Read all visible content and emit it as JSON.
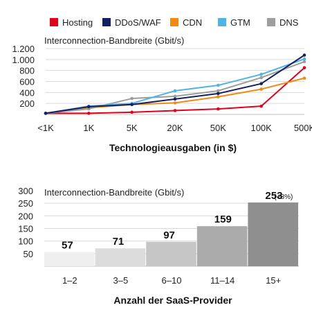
{
  "colors": {
    "Hosting": "#e3001b",
    "DDoS/WAF": "#14215e",
    "CDN": "#f08a14",
    "GTM": "#4fb3e3",
    "DNS": "#9d9d9d"
  },
  "chart_data": [
    {
      "type": "line",
      "title": "Interconnection-Bandbreite (Gbit/s)",
      "xlabel": "Technologieausgaben (in $)",
      "categories": [
        "<1K",
        "1K",
        "5K",
        "20K",
        "50K",
        "100K",
        "500K"
      ],
      "ylim": [
        0,
        1200
      ],
      "yticks": [
        200,
        400,
        600,
        800,
        "1.000",
        "1.200"
      ],
      "grid": true,
      "legend_position": "top",
      "series": [
        {
          "name": "Hosting",
          "values": [
            20,
            20,
            40,
            70,
            100,
            150,
            850
          ]
        },
        {
          "name": "DDoS/WAF",
          "values": [
            20,
            140,
            180,
            280,
            380,
            560,
            1080
          ]
        },
        {
          "name": "CDN",
          "values": [
            20,
            120,
            180,
            210,
            320,
            460,
            660
          ]
        },
        {
          "name": "GTM",
          "values": [
            20,
            150,
            200,
            430,
            530,
            730,
            1010
          ]
        },
        {
          "name": "DNS",
          "values": [
            20,
            100,
            290,
            330,
            430,
            670,
            960
          ]
        }
      ]
    },
    {
      "type": "bar",
      "title": "Interconnection-Bandbreite (Gbit/s)",
      "xlabel": "Anzahl der SaaS-Provider",
      "categories": [
        "1–2",
        "3–5",
        "6–10",
        "11–14",
        "15+"
      ],
      "values": [
        57,
        71,
        97,
        159,
        253
      ],
      "value_labels": [
        "57",
        "71",
        "97",
        "159",
        "253"
      ],
      "annotation": "(+8%)",
      "ylim": [
        0,
        300
      ],
      "yticks": [
        50,
        100,
        150,
        200,
        250,
        300
      ],
      "bar_colors": [
        "#efefef",
        "#dcdcdc",
        "#c6c6c6",
        "#ababab",
        "#8f8f8f"
      ]
    }
  ]
}
